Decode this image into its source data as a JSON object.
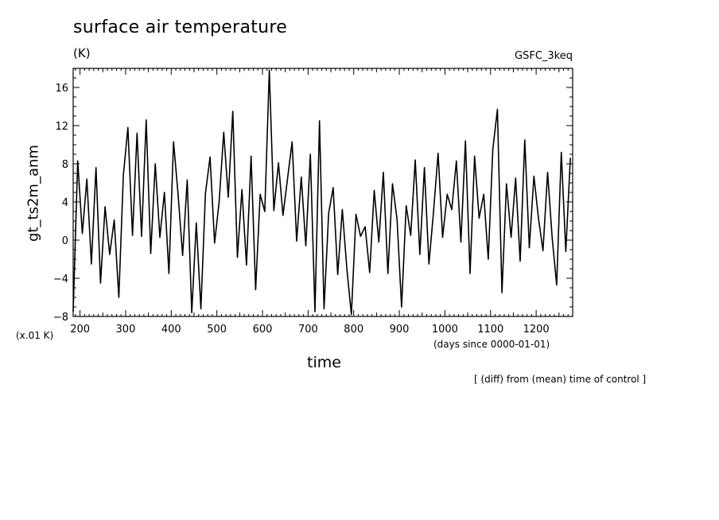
{
  "chart_data": {
    "type": "line",
    "title": "surface air temperature",
    "units": "(K)",
    "run_label": "GSFC_3keq",
    "ylabel": "gt_ts2m_anm",
    "yscale_label": "(x.01 K)",
    "xlabel": "time",
    "xunit_label": "(days since 0000-01-01)",
    "note": "[ (diff) from (mean) time of control ]",
    "xlim": [
      185,
      1280
    ],
    "ylim": [
      -8,
      18
    ],
    "xticks": [
      200,
      300,
      400,
      500,
      600,
      700,
      800,
      900,
      1000,
      1100,
      1200
    ],
    "yticks": [
      -8,
      -4,
      0,
      4,
      8,
      12,
      16
    ],
    "line_color": "#000000",
    "x": [
      185,
      195,
      205,
      215,
      225,
      235,
      245,
      255,
      265,
      275,
      285,
      295,
      305,
      315,
      325,
      335,
      345,
      355,
      365,
      375,
      385,
      395,
      405,
      415,
      425,
      435,
      445,
      455,
      465,
      475,
      485,
      495,
      505,
      515,
      525,
      535,
      545,
      555,
      565,
      575,
      585,
      595,
      605,
      615,
      625,
      635,
      645,
      655,
      665,
      675,
      685,
      695,
      705,
      715,
      725,
      735,
      745,
      755,
      765,
      775,
      785,
      795,
      805,
      815,
      825,
      835,
      845,
      855,
      865,
      875,
      885,
      895,
      905,
      915,
      925,
      935,
      945,
      955,
      965,
      975,
      985,
      995,
      1005,
      1015,
      1025,
      1035,
      1045,
      1055,
      1065,
      1075,
      1085,
      1095,
      1105,
      1115,
      1125,
      1135,
      1145,
      1155,
      1165,
      1175,
      1185,
      1195,
      1205,
      1215,
      1225,
      1235,
      1245,
      1255,
      1265,
      1275
    ],
    "y": [
      -7.5,
      8.3,
      0.7,
      6.4,
      -2.5,
      7.6,
      -4.5,
      3.5,
      -1.5,
      2.1,
      -6.0,
      6.8,
      11.8,
      0.5,
      11.2,
      0.4,
      12.6,
      -1.4,
      8.0,
      0.3,
      5.0,
      -3.5,
      10.3,
      4.8,
      -1.6,
      6.3,
      -7.6,
      1.8,
      -7.2,
      4.9,
      8.7,
      -0.3,
      4.0,
      11.3,
      4.5,
      13.5,
      -1.8,
      5.3,
      -2.6,
      8.8,
      -5.2,
      4.8,
      3.0,
      17.8,
      3.1,
      8.1,
      2.6,
      6.5,
      10.3,
      -0.1,
      6.6,
      -0.6,
      9.0,
      -7.5,
      12.5,
      -7.2,
      2.8,
      5.5,
      -3.6,
      3.2,
      -3.0,
      -7.8,
      2.7,
      0.4,
      1.4,
      -3.4,
      5.2,
      -0.2,
      7.1,
      -3.5,
      5.9,
      2.2,
      -7.0,
      3.6,
      0.5,
      8.4,
      -1.5,
      7.6,
      -2.5,
      3.0,
      9.1,
      0.3,
      4.8,
      3.2,
      8.3,
      -0.2,
      10.4,
      -3.5,
      8.8,
      2.3,
      4.8,
      -2.0,
      9.5,
      13.7,
      -5.5,
      5.9,
      0.3,
      6.5,
      -2.2,
      10.5,
      -0.8,
      6.7,
      2.3,
      -1.1,
      7.1,
      0.3,
      -4.7,
      9.2,
      -1.2,
      8.6
    ]
  }
}
